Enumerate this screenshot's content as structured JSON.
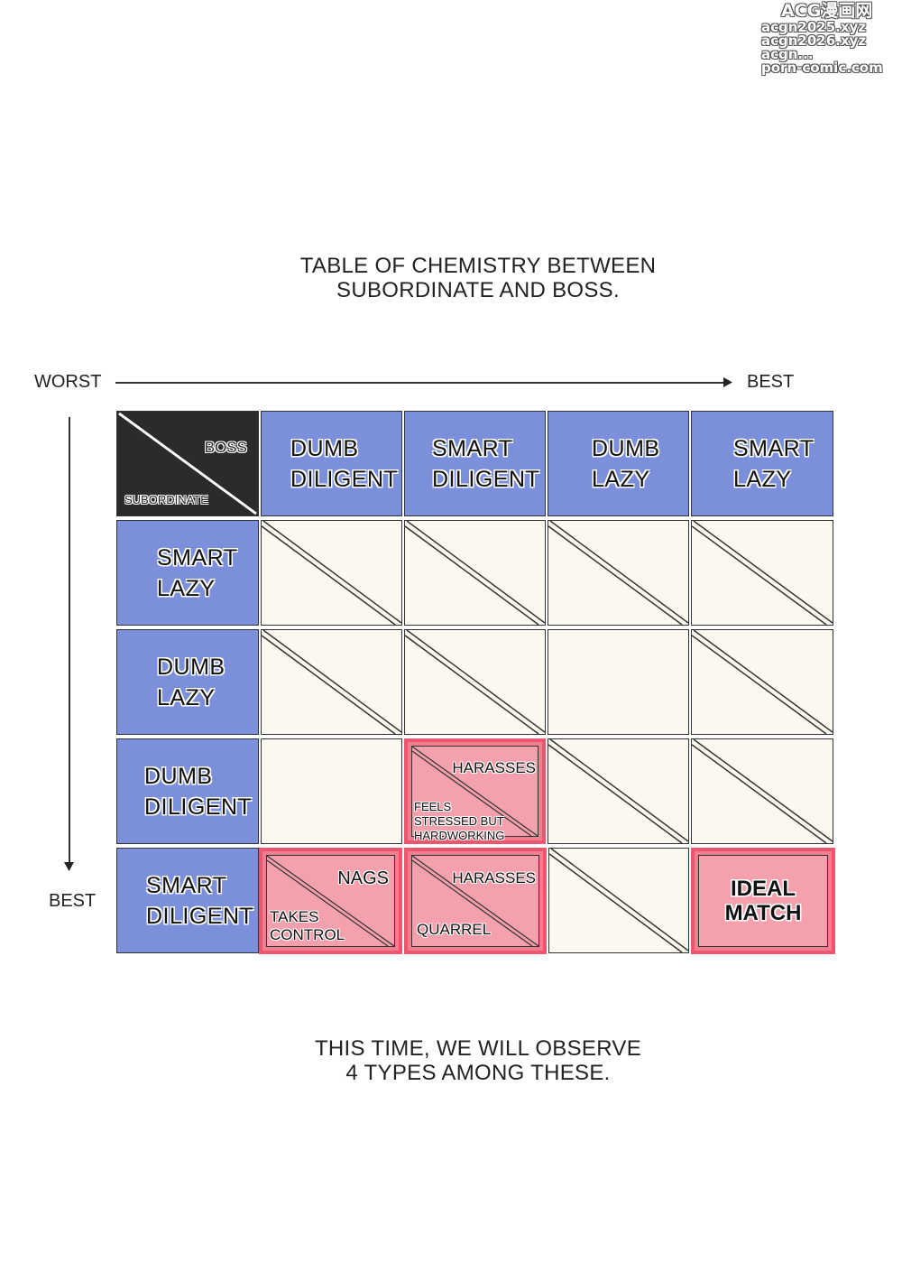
{
  "watermark": {
    "title": "ACG漫画网",
    "lines": [
      "acgn2025.xyz",
      "acgn2026.xyz",
      "acgn...",
      "porn-comic.com"
    ]
  },
  "title": {
    "line1": "TABLE OF CHEMISTRY BETWEEN",
    "line2": "SUBORDINATE AND BOSS."
  },
  "axis": {
    "top_start": "WORST",
    "top_end": "BEST",
    "left_end": "BEST"
  },
  "corner": {
    "boss": "BOSS",
    "subordinate": "SUBORDINATE"
  },
  "boss_headers": [
    {
      "line1": "DUMB",
      "line2": "DILIGENT"
    },
    {
      "line1": "SMART",
      "line2": "DILIGENT"
    },
    {
      "line1": "DUMB",
      "line2": "LAZY"
    },
    {
      "line1": "SMART",
      "line2": "LAZY"
    }
  ],
  "subordinate_headers": [
    {
      "line1": "SMART",
      "line2": "LAZY"
    },
    {
      "line1": "DUMB",
      "line2": "LAZY"
    },
    {
      "line1": "DUMB",
      "line2": "DILIGENT"
    },
    {
      "line1": "SMART",
      "line2": "DILIGENT"
    }
  ],
  "cells": {
    "dumb_diligent_smart_diligent": {
      "boss_text": "HARASSES",
      "sub_line1": "FEELS",
      "sub_line2": "STRESSED BUT",
      "sub_line3": "HARDWORKING"
    },
    "smart_diligent_dumb_diligent": {
      "boss_text": "NAGS",
      "sub_line1": "TAKES",
      "sub_line2": "CONTROL"
    },
    "smart_diligent_smart_diligent": {
      "boss_text": "HARASSES",
      "sub_text": "QUARREL"
    },
    "smart_diligent_smart_lazy": {
      "line1": "IDEAL",
      "line2": "MATCH"
    }
  },
  "footer": {
    "line1": "THIS TIME, WE WILL OBSERVE",
    "line2": "4 TYPES AMONG THESE."
  }
}
